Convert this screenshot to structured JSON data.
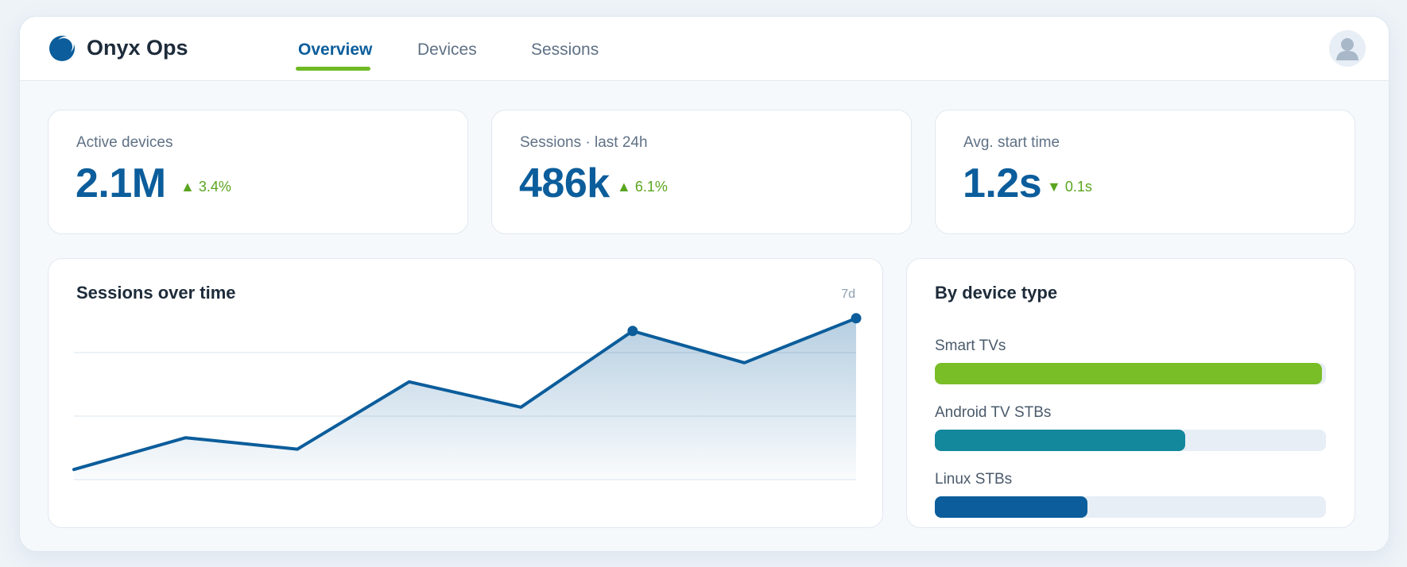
{
  "app": {
    "name": "Onyx Ops"
  },
  "nav": {
    "tabs": [
      {
        "label": "Overview",
        "active": true
      },
      {
        "label": "Devices",
        "active": false
      },
      {
        "label": "Sessions",
        "active": false
      }
    ]
  },
  "colors": {
    "primary": "#0b5d9b",
    "accent_green": "#6fba24",
    "teal": "#13879b",
    "positive": "#5aa51f"
  },
  "icons": {
    "logo": "crescent-logo-icon",
    "avatar": "user-avatar-icon"
  },
  "kpis": [
    {
      "label": "Active devices",
      "value": "2.1M",
      "delta": "▲ 3.4%"
    },
    {
      "label": "Sessions · last 24h",
      "value": "486k",
      "delta": "▲ 6.1%"
    },
    {
      "label": "Avg. start time",
      "value": "1.2s",
      "delta": "▼ 0.1s"
    }
  ],
  "sessions_chart": {
    "title": "Sessions over time",
    "range": "7d"
  },
  "device_type": {
    "title": "By device type",
    "items": [
      {
        "label": "Smart TVs",
        "fraction": 0.99,
        "color": "#79bd27"
      },
      {
        "label": "Android TV STBs",
        "fraction": 0.64,
        "color": "#13879b"
      },
      {
        "label": "Linux STBs",
        "fraction": 0.39,
        "color": "#0b5d9b"
      }
    ]
  },
  "chart_data": {
    "type": "area",
    "title": "Sessions over time",
    "x": [
      1,
      2,
      3,
      4,
      5,
      6,
      7,
      8
    ],
    "series": [
      {
        "values": [
          0.08,
          0.33,
          0.24,
          0.77,
          0.57,
          1.17,
          0.92,
          1.27
        ]
      }
    ],
    "ylim": [
      0,
      1.5
    ],
    "grid": true,
    "markers_at_index": [
      5,
      7
    ],
    "xlabel": "",
    "ylabel": ""
  }
}
